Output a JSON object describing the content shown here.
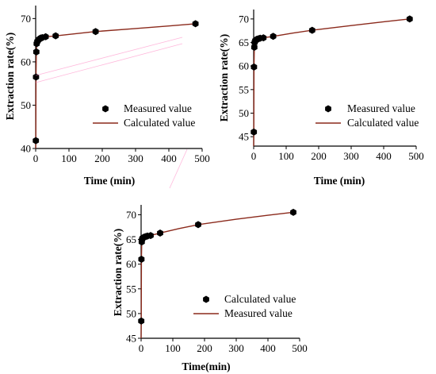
{
  "colors": {
    "line": "#8b2a1c",
    "marker": "#000000",
    "axis": "#000000",
    "artifact": "#ff7fbf"
  },
  "chart_data": [
    {
      "type": "scatter",
      "xlabel": "Time (min)",
      "ylabel": "Extraction rate(%)",
      "xlim": [
        0,
        500
      ],
      "ylim": [
        40,
        73
      ],
      "xticks": [
        "0",
        "100",
        "200",
        "300",
        "400",
        "500"
      ],
      "yticks": [
        "40",
        "50",
        "60",
        "70"
      ],
      "xtick_values": [
        0,
        100,
        200,
        300,
        400,
        500
      ],
      "ytick_values": [
        40,
        50,
        60,
        70
      ],
      "legend": [
        "Measured value",
        "Calculated value"
      ],
      "legend_position": "lower-right",
      "series": [
        {
          "name": "Measured value",
          "marker": "hexagon",
          "x": [
            0.5,
            1,
            2,
            3,
            5,
            8,
            10,
            15,
            20,
            30,
            60,
            180,
            480
          ],
          "y": [
            41.8,
            56.5,
            62.3,
            64.2,
            64.7,
            65.0,
            65.2,
            65.5,
            65.6,
            65.8,
            66.0,
            67.0,
            68.8
          ]
        },
        {
          "name": "Calculated value",
          "style": "line",
          "x": [
            0,
            0.5,
            1,
            2,
            3,
            5,
            8,
            10,
            15,
            20,
            30,
            60,
            120,
            180,
            300,
            400,
            480
          ],
          "y": [
            40,
            42.0,
            56.5,
            62.3,
            64.2,
            64.7,
            65.0,
            65.2,
            65.4,
            65.6,
            65.8,
            66.0,
            66.5,
            67.0,
            67.7,
            68.3,
            68.8
          ]
        }
      ]
    },
    {
      "type": "scatter",
      "xlabel": "Time  (min)",
      "ylabel": "Extraction rate(%)",
      "xlim": [
        0,
        500
      ],
      "ylim": [
        43,
        72
      ],
      "xticks": [
        "0",
        "100",
        "200",
        "300",
        "400",
        "500"
      ],
      "yticks": [
        "45",
        "50",
        "55",
        "60",
        "65",
        "70"
      ],
      "xtick_values": [
        0,
        100,
        200,
        300,
        400,
        500
      ],
      "ytick_values": [
        45,
        50,
        55,
        60,
        65,
        70
      ],
      "legend": [
        "Measured value",
        "Calculated value"
      ],
      "legend_position": "lower-right",
      "series": [
        {
          "name": "Measured value",
          "marker": "hexagon",
          "x": [
            0.5,
            1,
            2,
            3,
            5,
            8,
            10,
            15,
            20,
            30,
            60,
            180,
            480
          ],
          "y": [
            46.0,
            59.8,
            64.0,
            65.0,
            65.4,
            65.5,
            65.7,
            65.8,
            65.9,
            66.0,
            66.3,
            67.6,
            70.0
          ]
        },
        {
          "name": "Calculated value",
          "style": "line",
          "x": [
            0,
            0.5,
            1,
            2,
            3,
            5,
            8,
            10,
            15,
            20,
            30,
            60,
            120,
            180,
            300,
            400,
            480
          ],
          "y": [
            43,
            46.0,
            59.8,
            64.0,
            65.0,
            65.4,
            65.5,
            65.7,
            65.8,
            65.9,
            66.0,
            66.3,
            67.0,
            67.6,
            68.6,
            69.4,
            70.0
          ]
        }
      ]
    },
    {
      "type": "scatter",
      "xlabel": "Time(min)",
      "ylabel": "Extraction rate(%)",
      "xlim": [
        0,
        500
      ],
      "ylim": [
        45,
        72
      ],
      "xticks": [
        "0",
        "100",
        "200",
        "300",
        "400",
        "500"
      ],
      "yticks": [
        "45",
        "50",
        "55",
        "60",
        "65",
        "70"
      ],
      "xtick_values": [
        0,
        100,
        200,
        300,
        400,
        500
      ],
      "ytick_values": [
        45,
        50,
        55,
        60,
        65,
        70
      ],
      "legend": [
        "Calculated value",
        "Measured value"
      ],
      "legend_position": "lower-right",
      "series": [
        {
          "name": "Calculated value",
          "marker": "hexagon",
          "x": [
            0.5,
            1,
            2,
            3,
            5,
            8,
            10,
            15,
            20,
            30,
            60,
            180,
            480
          ],
          "y": [
            48.5,
            61.0,
            64.5,
            65.0,
            65.3,
            65.4,
            65.5,
            65.6,
            65.7,
            65.8,
            66.3,
            68.0,
            70.5
          ]
        },
        {
          "name": "Measured value",
          "style": "line",
          "x": [
            0,
            0.5,
            1,
            2,
            3,
            5,
            8,
            10,
            15,
            20,
            30,
            60,
            120,
            180,
            300,
            400,
            480
          ],
          "y": [
            45,
            48.5,
            61.0,
            64.5,
            65.0,
            65.3,
            65.4,
            65.5,
            65.6,
            65.7,
            65.8,
            66.3,
            67.2,
            68.0,
            69.1,
            69.9,
            70.5
          ]
        }
      ]
    }
  ]
}
